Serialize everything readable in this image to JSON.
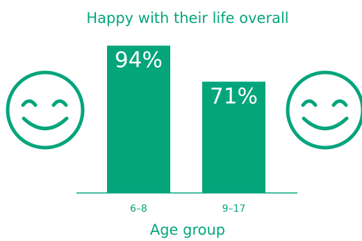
{
  "chart_data": {
    "type": "bar",
    "title": "Happy with their life overall",
    "xlabel": "Age group",
    "ylabel": "",
    "categories": [
      "6–8",
      "9–17"
    ],
    "values": [
      94,
      71
    ],
    "value_labels": [
      "94%",
      "71%"
    ],
    "ylim": [
      0,
      100
    ],
    "grid": false,
    "legend": "none"
  },
  "colors": {
    "accent": "#05A57C",
    "bar_label": "#ffffff",
    "background": "#ffffff"
  },
  "decorations": {
    "left_icon": "smiley-face-icon",
    "right_icon": "smiley-face-icon"
  }
}
